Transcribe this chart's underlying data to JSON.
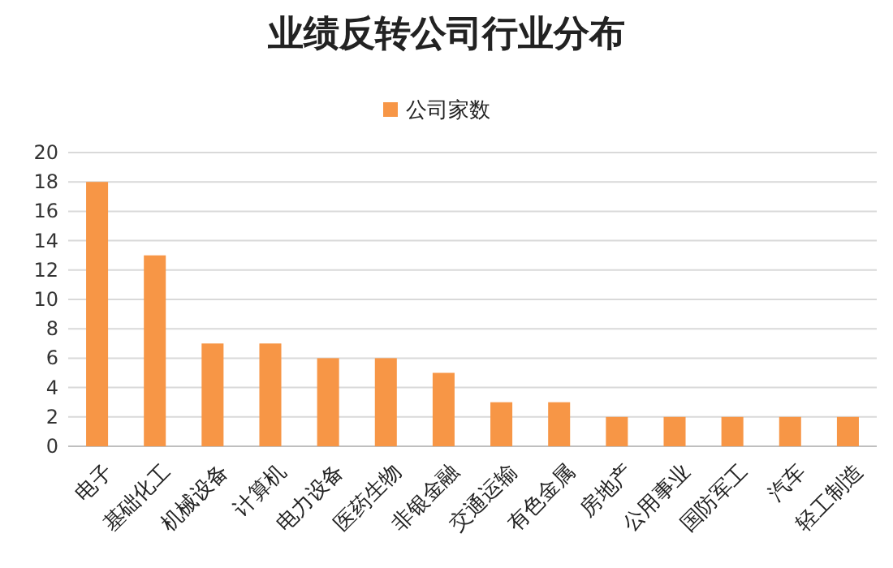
{
  "chart_data": {
    "type": "bar",
    "title": "业绩反转公司行业分布",
    "categories": [
      "电子",
      "基础化工",
      "机械设备",
      "计算机",
      "电力设备",
      "医药生物",
      "非银金融",
      "交通运输",
      "有色金属",
      "房地产",
      "公用事业",
      "国防军工",
      "汽车",
      "轻工制造"
    ],
    "series": [
      {
        "name": "公司家数",
        "color": "#f79646",
        "values": [
          18,
          13,
          7,
          7,
          6,
          6,
          5,
          3,
          3,
          2,
          2,
          2,
          2,
          2
        ]
      }
    ],
    "ylim": [
      0,
      20
    ],
    "yticks": [
      0,
      2,
      4,
      6,
      8,
      10,
      12,
      14,
      16,
      18,
      20
    ],
    "grid": "y",
    "legend": "top"
  }
}
